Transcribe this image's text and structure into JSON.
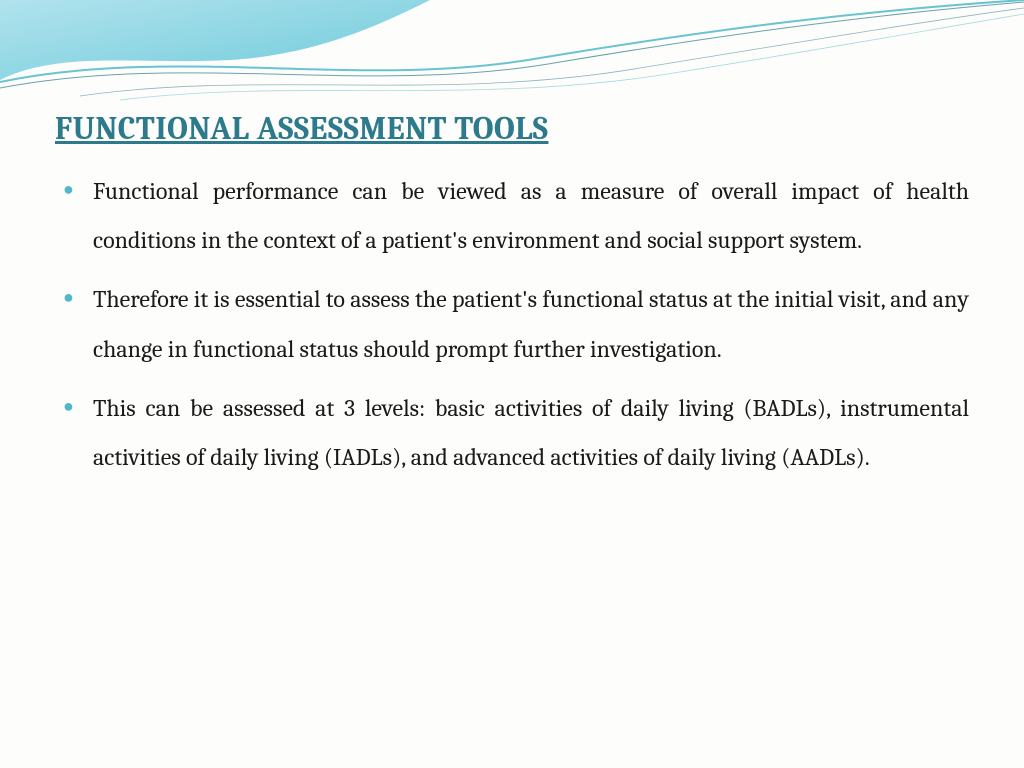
{
  "slide": {
    "title": "FUNCTIONAL ASSESSMENT TOOLS",
    "bullets": [
      "Functional performance can be viewed as a measure of overall impact of health conditions in the context of a patient's environment and social support system.",
      "Therefore it is essential to assess the patient's functional status at the initial visit, and any change in functional status should prompt further investigation.",
      "This can be assessed at 3 levels: basic activities of daily living (BADLs), instrumental activities of daily living (IADLs), and advanced activities of daily living (AADLs)."
    ]
  },
  "style": {
    "title_color": "#2c7a8c",
    "bullet_color": "#4fb8c9",
    "body_text_color": "#1a1a1a",
    "background_color": "#fdfdfb",
    "wave_gradient_start": "#a8e0ec",
    "wave_gradient_end": "#5fc4d6",
    "wave_line_color": "#2c7a8c",
    "title_fontsize": 32,
    "body_fontsize": 24
  }
}
